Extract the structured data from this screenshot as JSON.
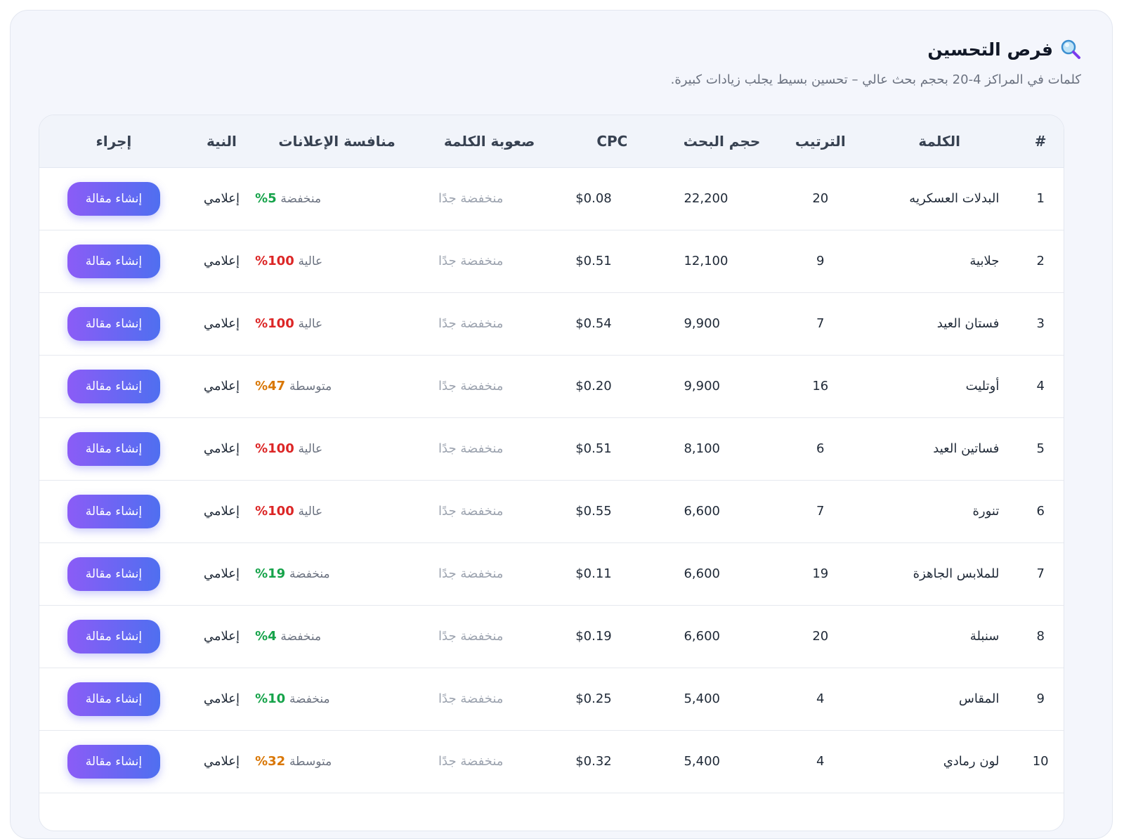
{
  "header": {
    "title": "فرص التحسين",
    "icon": "magnifier-icon",
    "subtitle": "كلمات في المراكز 4-20 بحجم بحث عالي – تحسين بسيط يجلب زيادات كبيرة."
  },
  "table": {
    "columns": {
      "num": "#",
      "keyword": "الكلمة",
      "rank": "الترتيب",
      "volume": "حجم البحث",
      "cpc": "CPC",
      "difficulty": "صعوبة الكلمة",
      "competition": "منافسة الإعلانات",
      "intent": "النية",
      "action": "إجراء"
    },
    "rows": [
      {
        "num": "1",
        "keyword": "البدلات العسكريه",
        "rank": "20",
        "volume": "22,200",
        "cpc": "$0.08",
        "difficulty": "منخفضة جدًا",
        "comp_pct": "5%",
        "comp_label": "منخفضة",
        "comp_level": "low",
        "intent": "إعلامي",
        "action": "إنشاء مقالة"
      },
      {
        "num": "2",
        "keyword": "جلابية",
        "rank": "9",
        "volume": "12,100",
        "cpc": "$0.51",
        "difficulty": "منخفضة جدًا",
        "comp_pct": "100%",
        "comp_label": "عالية",
        "comp_level": "high",
        "intent": "إعلامي",
        "action": "إنشاء مقالة"
      },
      {
        "num": "3",
        "keyword": "فستان العيد",
        "rank": "7",
        "volume": "9,900",
        "cpc": "$0.54",
        "difficulty": "منخفضة جدًا",
        "comp_pct": "100%",
        "comp_label": "عالية",
        "comp_level": "high",
        "intent": "إعلامي",
        "action": "إنشاء مقالة"
      },
      {
        "num": "4",
        "keyword": "أوتليت",
        "rank": "16",
        "volume": "9,900",
        "cpc": "$0.20",
        "difficulty": "منخفضة جدًا",
        "comp_pct": "47%",
        "comp_label": "متوسطة",
        "comp_level": "mid",
        "intent": "إعلامي",
        "action": "إنشاء مقالة"
      },
      {
        "num": "5",
        "keyword": "فساتين العيد",
        "rank": "6",
        "volume": "8,100",
        "cpc": "$0.51",
        "difficulty": "منخفضة جدًا",
        "comp_pct": "100%",
        "comp_label": "عالية",
        "comp_level": "high",
        "intent": "إعلامي",
        "action": "إنشاء مقالة"
      },
      {
        "num": "6",
        "keyword": "تنورة",
        "rank": "7",
        "volume": "6,600",
        "cpc": "$0.55",
        "difficulty": "منخفضة جدًا",
        "comp_pct": "100%",
        "comp_label": "عالية",
        "comp_level": "high",
        "intent": "إعلامي",
        "action": "إنشاء مقالة"
      },
      {
        "num": "7",
        "keyword": "للملابس الجاهزة",
        "rank": "19",
        "volume": "6,600",
        "cpc": "$0.11",
        "difficulty": "منخفضة جدًا",
        "comp_pct": "19%",
        "comp_label": "منخفضة",
        "comp_level": "low",
        "intent": "إعلامي",
        "action": "إنشاء مقالة"
      },
      {
        "num": "8",
        "keyword": "سنبلة",
        "rank": "20",
        "volume": "6,600",
        "cpc": "$0.19",
        "difficulty": "منخفضة جدًا",
        "comp_pct": "4%",
        "comp_label": "منخفضة",
        "comp_level": "low",
        "intent": "إعلامي",
        "action": "إنشاء مقالة"
      },
      {
        "num": "9",
        "keyword": "المقاس",
        "rank": "4",
        "volume": "5,400",
        "cpc": "$0.25",
        "difficulty": "منخفضة جدًا",
        "comp_pct": "10%",
        "comp_label": "منخفضة",
        "comp_level": "low",
        "intent": "إعلامي",
        "action": "إنشاء مقالة"
      },
      {
        "num": "10",
        "keyword": "لون رمادي",
        "rank": "4",
        "volume": "5,400",
        "cpc": "$0.32",
        "difficulty": "منخفضة جدًا",
        "comp_pct": "32%",
        "comp_label": "متوسطة",
        "comp_level": "mid",
        "intent": "إعلامي",
        "action": "إنشاء مقالة"
      }
    ]
  }
}
